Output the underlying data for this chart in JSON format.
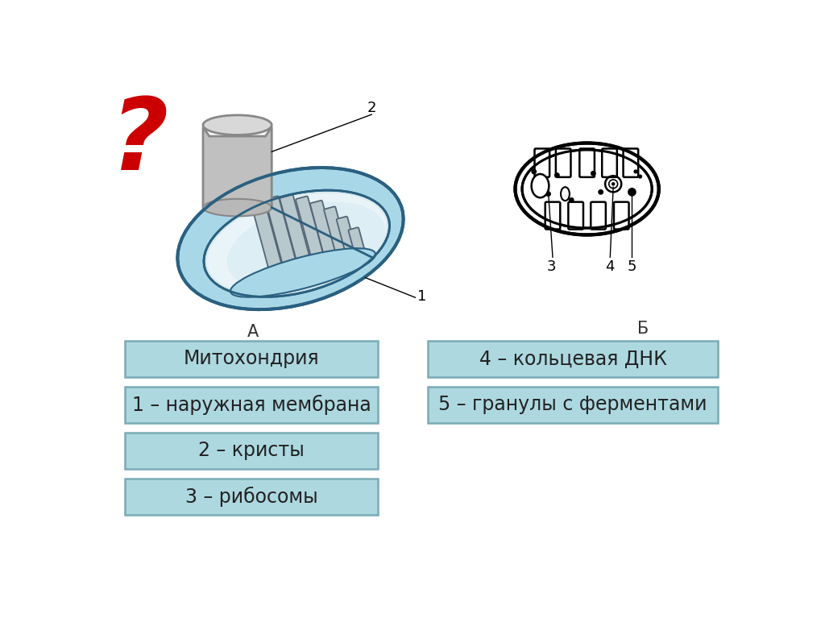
{
  "bg_color": "#ffffff",
  "box_fill": "#add8e0",
  "box_edge": "#7aabb5",
  "text_color": "#222222",
  "labels_left": [
    "Митохондрия",
    "1 – наружная мембрана",
    "2 – кристы",
    "3 – рибосомы"
  ],
  "labels_right": [
    "4 – кольцевая ДНК",
    "5 – гранулы с ферментами"
  ],
  "question_mark": "?",
  "label_A": "А",
  "label_B": "Б",
  "font_size_boxes": 17,
  "font_size_labels": 13,
  "font_size_qmark": 90,
  "mito_outer_color": "#a8d8e8",
  "mito_outer_edge": "#2a6080",
  "mito_inner_color": "#c5dce4",
  "crista_fill": "#b8c8cc",
  "crista_edge": "#556677",
  "cyl_fill": "#c0c0c0",
  "cyl_edge": "#888888",
  "cyl_dark": "#909090"
}
